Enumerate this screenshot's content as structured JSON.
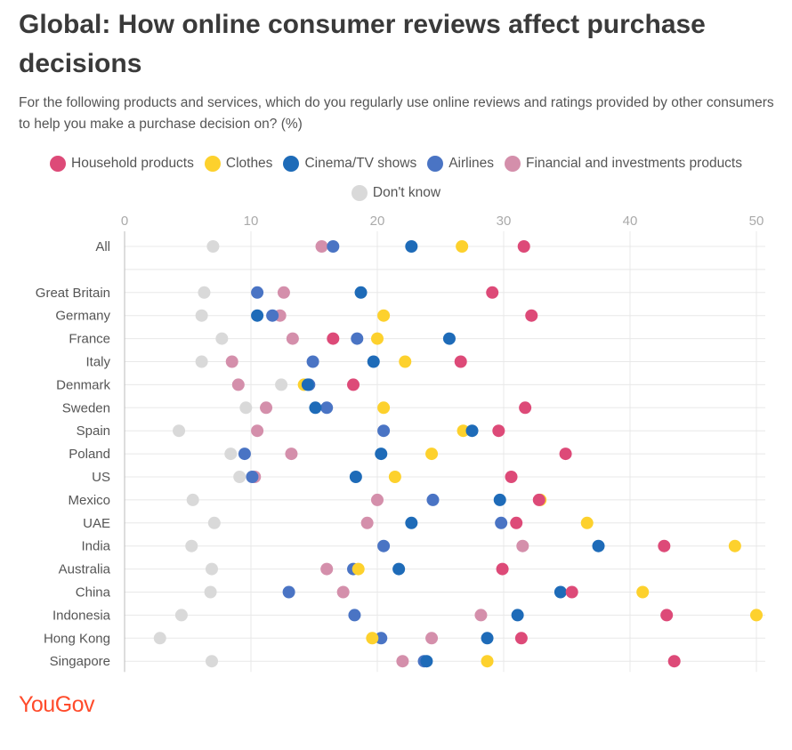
{
  "header": {
    "title": "Global: How online consumer reviews affect purchase decisions",
    "subtitle": "For the following products and services, which do you regularly use online reviews and ratings provided by other consumers to help you make a purchase decision on? (%)"
  },
  "logo": {
    "text": "YouGov"
  },
  "chart_data": {
    "type": "scatter",
    "title": "Global: How online consumer reviews affect purchase decisions",
    "xlim": [
      0,
      50
    ],
    "xticks": [
      0,
      10,
      20,
      30,
      40,
      50
    ],
    "categories": [
      "All",
      "",
      "Great Britain",
      "Germany",
      "France",
      "Italy",
      "Denmark",
      "Sweden",
      "Spain",
      "Poland",
      "US",
      "Mexico",
      "UAE",
      "India",
      "Australia",
      "China",
      "Indonesia",
      "Hong Kong",
      "Singapore"
    ],
    "series": [
      {
        "name": "Don't know",
        "color": "#d9d9d9",
        "values": [
          7,
          null,
          6.3,
          6.1,
          7.7,
          6.1,
          12.4,
          9.6,
          4.3,
          8.4,
          9.1,
          5.4,
          7.1,
          5.3,
          6.9,
          6.8,
          4.5,
          2.8,
          6.9
        ]
      },
      {
        "name": "Financial and investments products",
        "color": "#d48fab",
        "values": [
          15.6,
          null,
          12.6,
          12.3,
          13.3,
          8.5,
          9.0,
          11.2,
          10.5,
          13.2,
          10.3,
          20.0,
          19.2,
          31.5,
          16.0,
          17.3,
          28.2,
          24.3,
          22.0
        ]
      },
      {
        "name": "Airlines",
        "color": "#4a74c4",
        "values": [
          16.5,
          null,
          10.5,
          11.7,
          18.4,
          14.9,
          14.6,
          16.0,
          20.5,
          9.5,
          10.1,
          24.4,
          29.8,
          20.5,
          18.1,
          13.0,
          18.2,
          20.3,
          23.7
        ]
      },
      {
        "name": "Clothes",
        "color": "#fdd12d",
        "values": [
          26.7,
          null,
          null,
          20.5,
          20.0,
          22.2,
          14.2,
          20.5,
          26.8,
          24.3,
          21.4,
          32.9,
          36.6,
          48.3,
          18.5,
          41.0,
          50.0,
          19.6,
          28.7
        ]
      },
      {
        "name": "Cinema/TV shows",
        "color": "#1e6bb8",
        "values": [
          22.7,
          null,
          18.7,
          10.5,
          25.7,
          19.7,
          14.5,
          15.1,
          27.5,
          20.3,
          18.3,
          29.7,
          22.7,
          37.5,
          21.7,
          34.5,
          31.1,
          28.7,
          23.9
        ]
      },
      {
        "name": "Household products",
        "color": "#dd4a78",
        "values": [
          31.6,
          null,
          29.1,
          32.2,
          16.5,
          26.6,
          18.1,
          31.7,
          29.6,
          34.9,
          30.6,
          32.8,
          31.0,
          42.7,
          29.9,
          35.4,
          42.9,
          31.4,
          43.5
        ]
      }
    ]
  },
  "legend_order": [
    "Household products",
    "Clothes",
    "Cinema/TV shows",
    "Airlines",
    "Financial and investments products",
    "Don't know"
  ]
}
